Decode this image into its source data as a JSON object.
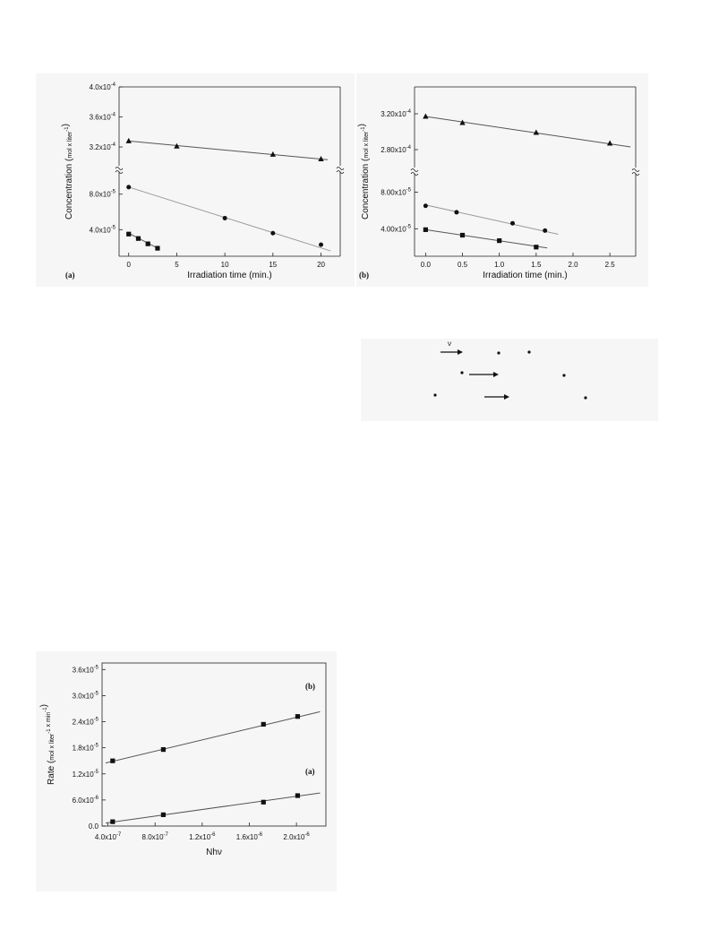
{
  "chart_data": [
    {
      "type": "scatter",
      "panel_label": "(a)",
      "xlabel": "Irradiation time (min.)",
      "ylabel": "Concentration (mol x liter-1)",
      "xlim": [
        -1,
        22
      ],
      "x_ticks": [
        "0",
        "5",
        "10",
        "15",
        "20"
      ],
      "x_tick_values": [
        0,
        5,
        10,
        15,
        20
      ],
      "broken_y_axis": true,
      "upper_segment": {
        "ylim": [
          0.000295,
          0.0004
        ],
        "tick_labels": [
          "3.2x10-4",
          "3.6x10-4",
          "4.0x10-4"
        ],
        "tick_values": [
          0.00032,
          0.00036,
          0.0004
        ]
      },
      "lower_segment": {
        "ylim": [
          1e-05,
          0.000105
        ],
        "tick_labels": [
          "4.0x10-5",
          "8.0x10-5"
        ],
        "tick_values": [
          4e-05,
          8e-05
        ]
      },
      "series": [
        {
          "marker": "triangle",
          "segment": "upper",
          "x": [
            0,
            5,
            15,
            20
          ],
          "y": [
            0.000328,
            0.000321,
            0.00031,
            0.000304
          ],
          "fit": {
            "x": [
              0,
              20.7
            ],
            "y": [
              0.000328,
              0.000303
            ]
          }
        },
        {
          "marker": "circle",
          "segment": "lower",
          "x": [
            0,
            10,
            15,
            20
          ],
          "y": [
            8.8e-05,
            5.3e-05,
            3.6e-05,
            2.3e-05
          ],
          "fit": {
            "x": [
              0,
              21
            ],
            "y": [
              8.8e-05,
              1.6e-05
            ]
          }
        },
        {
          "marker": "square",
          "segment": "lower",
          "x": [
            0,
            1,
            2,
            3
          ],
          "y": [
            3.5e-05,
            3e-05,
            2.4e-05,
            1.9e-05
          ],
          "fit": {
            "x": [
              0,
              3.2
            ],
            "y": [
              3.6e-05,
              1.8e-05
            ]
          }
        }
      ]
    },
    {
      "type": "scatter",
      "panel_label": "(b)",
      "xlabel": "Irradiation time (min.)",
      "ylabel": "Concentration (mol x liter-1)",
      "xlim": [
        -0.15,
        2.85
      ],
      "x_ticks": [
        "0.0",
        "0.5",
        "1.0",
        "1.5",
        "2.0",
        "2.5"
      ],
      "x_tick_values": [
        0,
        0.5,
        1.0,
        1.5,
        2.0,
        2.5
      ],
      "broken_y_axis": true,
      "upper_segment": {
        "ylim": [
          0.00026,
          0.00035
        ],
        "tick_labels": [
          "2.80x10-4",
          "3.20x10-4"
        ],
        "tick_values": [
          0.00028,
          0.00032
        ]
      },
      "lower_segment": {
        "ylim": [
          1e-05,
          0.0001
        ],
        "tick_labels": [
          "4.00x10-5",
          "8.00x10-5"
        ],
        "tick_values": [
          4e-05,
          8e-05
        ]
      },
      "series": [
        {
          "marker": "triangle",
          "segment": "upper",
          "x": [
            0,
            0.5,
            1.5,
            2.5
          ],
          "y": [
            0.000317,
            0.00031,
            0.000299,
            0.000287
          ],
          "fit": {
            "x": [
              0,
              2.78
            ],
            "y": [
              0.000317,
              0.000283
            ]
          }
        },
        {
          "marker": "circle",
          "segment": "lower",
          "x": [
            0,
            0.42,
            1.18,
            1.62
          ],
          "y": [
            6.5e-05,
            5.8e-05,
            4.6e-05,
            3.8e-05
          ],
          "fit": {
            "x": [
              0,
              1.8
            ],
            "y": [
              6.6e-05,
              3.4e-05
            ]
          }
        },
        {
          "marker": "square",
          "segment": "lower",
          "x": [
            0,
            0.5,
            1.0,
            1.5
          ],
          "y": [
            3.9e-05,
            3.3e-05,
            2.7e-05,
            2e-05
          ],
          "fit": {
            "x": [
              0,
              1.65
            ],
            "y": [
              3.9e-05,
              1.9e-05
            ]
          }
        }
      ]
    },
    {
      "type": "scatter",
      "xlabel": "Nhν",
      "ylabel": "Rate (mol x liter-1 x min-1)",
      "xlim": [
        3.5e-07,
        2.25e-06
      ],
      "ylim": [
        0,
        3.75e-05
      ],
      "x_tick_labels": [
        "4.0x10-7",
        "8.0x10-7",
        "1.2x10-6",
        "1.6x10-6",
        "2.0x10-6"
      ],
      "x_tick_values": [
        4e-07,
        8e-07,
        1.2e-06,
        1.6e-06,
        2e-06
      ],
      "y_tick_labels": [
        "0.0",
        "6.0x10-6",
        "1.2x10-5",
        "1.8x10-5",
        "2.4x10-5",
        "3.0x10-5",
        "3.6x10-5"
      ],
      "y_tick_values": [
        0,
        6e-06,
        1.2e-05,
        1.8e-05,
        2.4e-05,
        3e-05,
        3.6e-05
      ],
      "annotations": [
        "(b)",
        "(a)"
      ],
      "series": [
        {
          "name": "(b)",
          "marker": "square",
          "x": [
            4.4e-07,
            8.7e-07,
            1.72e-06,
            2.01e-06
          ],
          "y": [
            1.5e-05,
            1.76e-05,
            2.34e-05,
            2.52e-05
          ],
          "fit": {
            "x": [
              3.8e-07,
              2.2e-06
            ],
            "y": [
              1.45e-05,
              2.63e-05
            ]
          }
        },
        {
          "name": "(a)",
          "marker": "square",
          "x": [
            4.4e-07,
            8.7e-07,
            1.72e-06,
            2.01e-06
          ],
          "y": [
            1e-06,
            2.6e-06,
            5.5e-06,
            7e-06
          ],
          "fit": {
            "x": [
              3.8e-07,
              2.2e-06
            ],
            "y": [
              7e-07,
              7.6e-06
            ]
          }
        }
      ]
    }
  ],
  "scheme_box": {
    "labels": [
      "ν"
    ],
    "arrows": [
      "arrow-1",
      "arrow-2",
      "arrow-3"
    ]
  }
}
